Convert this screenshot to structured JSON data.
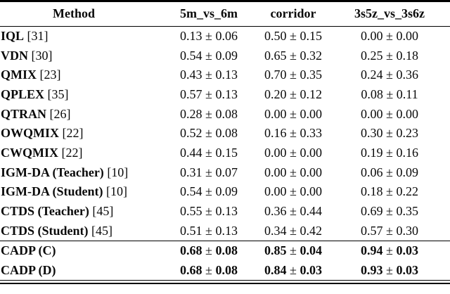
{
  "table": {
    "plus_minus": "±",
    "header": {
      "method": "Method",
      "columns": [
        "5m_vs_6m",
        "corridor",
        "3s5z_vs_3s6z"
      ]
    },
    "rows": [
      {
        "name": "IQL",
        "cite": "[31]",
        "bold": false,
        "separator_above": false,
        "values": [
          [
            "0.13",
            "0.06"
          ],
          [
            "0.50",
            "0.15"
          ],
          [
            "0.00",
            "0.00"
          ]
        ]
      },
      {
        "name": "VDN",
        "cite": "[30]",
        "bold": false,
        "separator_above": false,
        "values": [
          [
            "0.54",
            "0.09"
          ],
          [
            "0.65",
            "0.32"
          ],
          [
            "0.25",
            "0.18"
          ]
        ]
      },
      {
        "name": "QMIX",
        "cite": "[23]",
        "bold": false,
        "separator_above": false,
        "values": [
          [
            "0.43",
            "0.13"
          ],
          [
            "0.70",
            "0.35"
          ],
          [
            "0.24",
            "0.36"
          ]
        ]
      },
      {
        "name": "QPLEX",
        "cite": "[35]",
        "bold": false,
        "separator_above": false,
        "values": [
          [
            "0.57",
            "0.13"
          ],
          [
            "0.20",
            "0.12"
          ],
          [
            "0.08",
            "0.11"
          ]
        ]
      },
      {
        "name": "QTRAN",
        "cite": "[26]",
        "bold": false,
        "separator_above": false,
        "values": [
          [
            "0.28",
            "0.08"
          ],
          [
            "0.00",
            "0.00"
          ],
          [
            "0.00",
            "0.00"
          ]
        ]
      },
      {
        "name": "OWQMIX",
        "cite": "[22]",
        "bold": false,
        "separator_above": false,
        "values": [
          [
            "0.52",
            "0.08"
          ],
          [
            "0.16",
            "0.33"
          ],
          [
            "0.30",
            "0.23"
          ]
        ]
      },
      {
        "name": "CWQMIX",
        "cite": "[22]",
        "bold": false,
        "separator_above": false,
        "values": [
          [
            "0.44",
            "0.15"
          ],
          [
            "0.00",
            "0.00"
          ],
          [
            "0.19",
            "0.16"
          ]
        ]
      },
      {
        "name": "IGM-DA (Teacher)",
        "cite": "[10]",
        "bold": false,
        "separator_above": false,
        "values": [
          [
            "0.31",
            "0.07"
          ],
          [
            "0.00",
            "0.00"
          ],
          [
            "0.06",
            "0.09"
          ]
        ]
      },
      {
        "name": "IGM-DA (Student)",
        "cite": "[10]",
        "bold": false,
        "separator_above": false,
        "values": [
          [
            "0.54",
            "0.09"
          ],
          [
            "0.00",
            "0.00"
          ],
          [
            "0.18",
            "0.22"
          ]
        ]
      },
      {
        "name": "CTDS (Teacher)",
        "cite": "[45]",
        "bold": false,
        "separator_above": false,
        "values": [
          [
            "0.55",
            "0.13"
          ],
          [
            "0.36",
            "0.44"
          ],
          [
            "0.69",
            "0.35"
          ]
        ]
      },
      {
        "name": "CTDS (Student)",
        "cite": "[45]",
        "bold": false,
        "separator_above": false,
        "values": [
          [
            "0.51",
            "0.13"
          ],
          [
            "0.34",
            "0.42"
          ],
          [
            "0.57",
            "0.30"
          ]
        ]
      },
      {
        "name": "CADP (C)",
        "cite": "",
        "bold": true,
        "separator_above": true,
        "values": [
          [
            "0.68",
            "0.08"
          ],
          [
            "0.85",
            "0.04"
          ],
          [
            "0.94",
            "0.03"
          ]
        ]
      },
      {
        "name": "CADP (D)",
        "cite": "",
        "bold": true,
        "separator_above": false,
        "values": [
          [
            "0.68",
            "0.08"
          ],
          [
            "0.84",
            "0.03"
          ],
          [
            "0.93",
            "0.03"
          ]
        ]
      }
    ]
  }
}
